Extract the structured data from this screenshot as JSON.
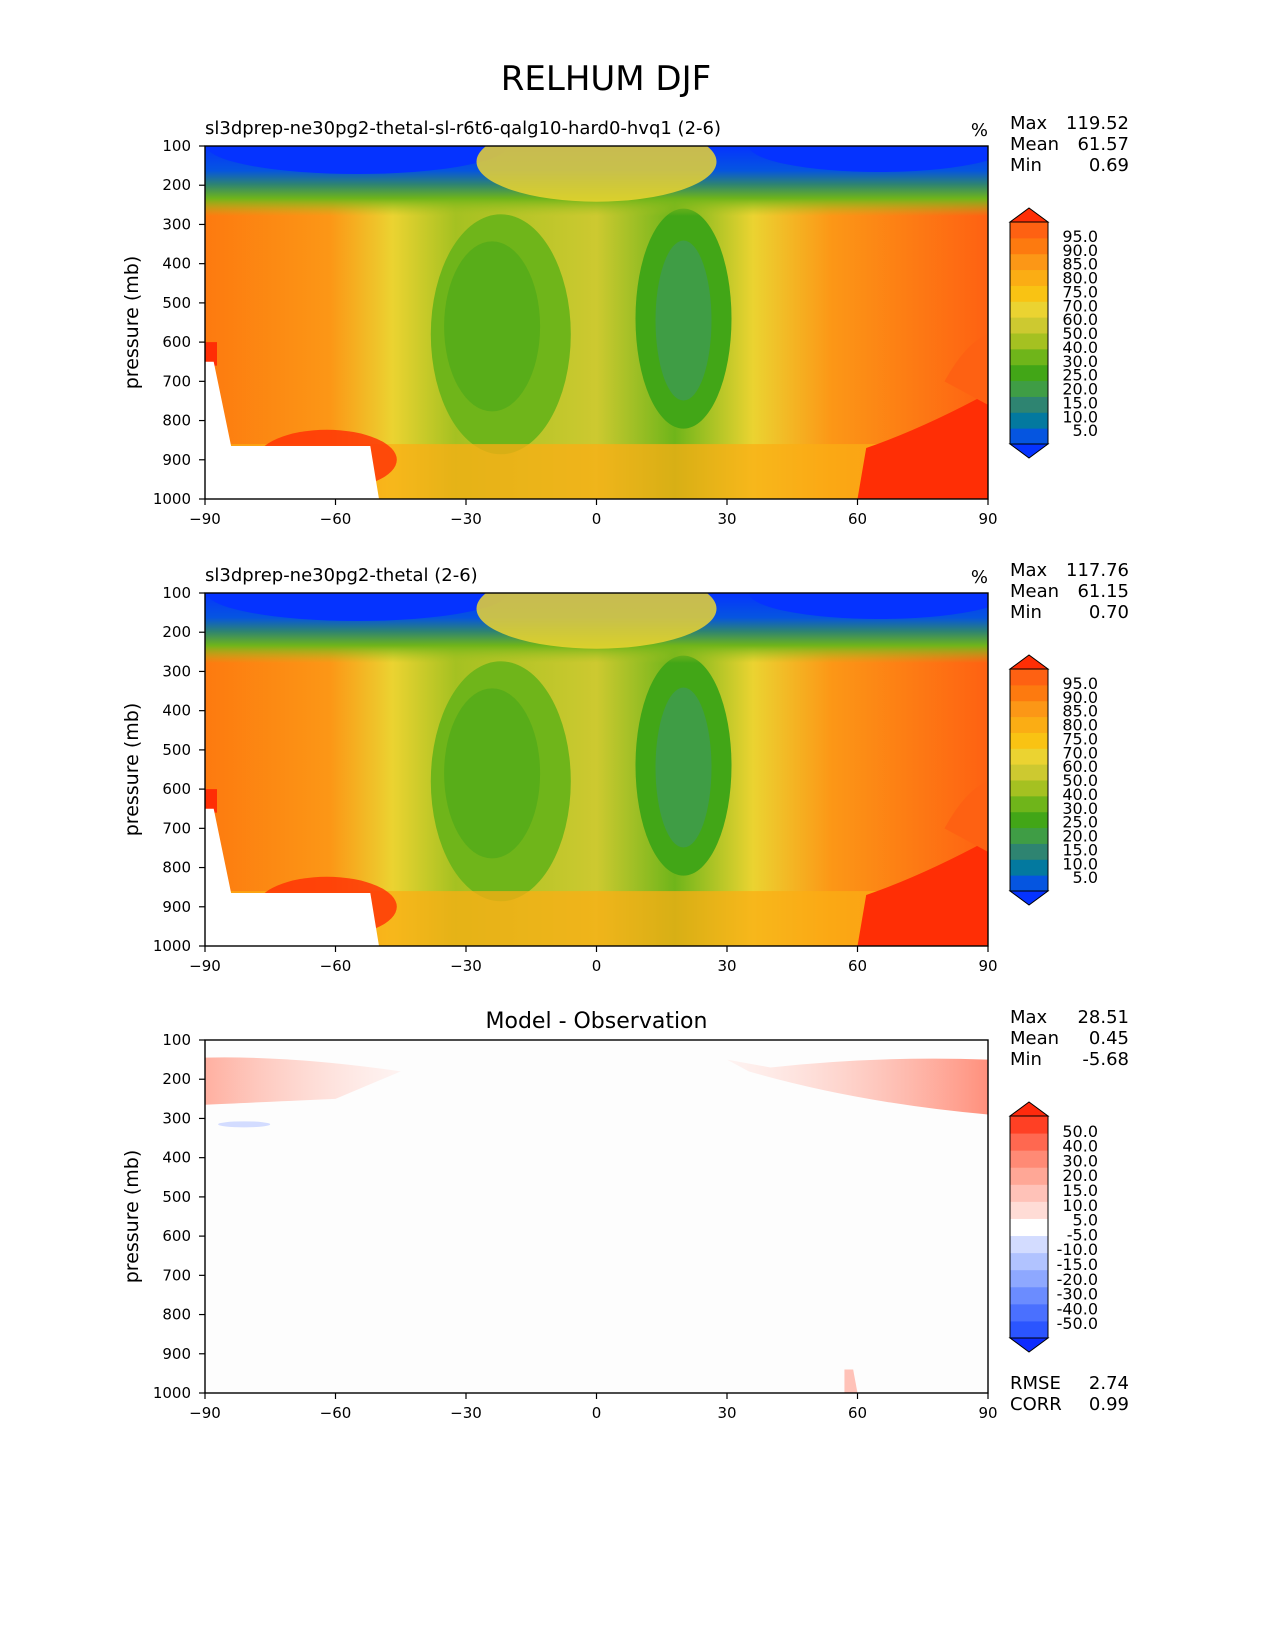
{
  "title": "RELHUM DJF",
  "stat_labels": {
    "max": "Max",
    "mean": "Mean",
    "min": "Min",
    "rmse": "RMSE",
    "corr": "CORR"
  },
  "panel_colors": {
    "absolute": [
      "#0533ff",
      "#0555e0",
      "#03799f",
      "#2e8471",
      "#3f9d45",
      "#42a617",
      "#6fb51a",
      "#a5c121",
      "#cdc930",
      "#ebd331",
      "#f9c313",
      "#fbad14",
      "#fc9716",
      "#fd7a0f",
      "#fe6112",
      "#ff2e05"
    ],
    "difference": [
      "#0d2bff",
      "#2b55ff",
      "#4a70ff",
      "#6b8cff",
      "#8ea8ff",
      "#b1c3ff",
      "#d3dcff",
      "#ffffff",
      "#ffdcd6",
      "#ffc2b8",
      "#ffa796",
      "#ff8a75",
      "#ff6850",
      "#ff4024",
      "#ff2a0d"
    ],
    "fill_background": "#fdfdfd"
  },
  "chart_data": [
    {
      "type": "contour",
      "title": "sl3dprep-ne30pg2-thetal-sl-r6t6-qalg10-hard0-hvq1 (2-6)",
      "units": "%",
      "ylabel": "pressure (mb)",
      "x_ticks": [
        -90,
        -60,
        -30,
        0,
        30,
        60,
        90
      ],
      "y_ticks": [
        100,
        200,
        300,
        400,
        500,
        600,
        700,
        800,
        900,
        1000
      ],
      "xlim": [
        -90,
        90
      ],
      "ylim": [
        1000,
        100
      ],
      "stats": {
        "max": "119.52",
        "mean": "61.57",
        "min": "0.69"
      },
      "colorbar_levels": [
        "5.0",
        "10.0",
        "15.0",
        "20.0",
        "25.0",
        "30.0",
        "40.0",
        "50.0",
        "60.0",
        "70.0",
        "75.0",
        "80.0",
        "85.0",
        "90.0",
        "95.0"
      ]
    },
    {
      "type": "contour",
      "title": "sl3dprep-ne30pg2-thetal (2-6)",
      "units": "%",
      "ylabel": "pressure (mb)",
      "x_ticks": [
        -90,
        -60,
        -30,
        0,
        30,
        60,
        90
      ],
      "y_ticks": [
        100,
        200,
        300,
        400,
        500,
        600,
        700,
        800,
        900,
        1000
      ],
      "xlim": [
        -90,
        90
      ],
      "ylim": [
        1000,
        100
      ],
      "stats": {
        "max": "117.76",
        "mean": "61.15",
        "min": "0.70"
      },
      "colorbar_levels": [
        "5.0",
        "10.0",
        "15.0",
        "20.0",
        "25.0",
        "30.0",
        "40.0",
        "50.0",
        "60.0",
        "70.0",
        "75.0",
        "80.0",
        "85.0",
        "90.0",
        "95.0"
      ]
    },
    {
      "type": "contour",
      "title": "Model - Observation",
      "units": "",
      "ylabel": "pressure (mb)",
      "x_ticks": [
        -90,
        -60,
        -30,
        0,
        30,
        60,
        90
      ],
      "y_ticks": [
        100,
        200,
        300,
        400,
        500,
        600,
        700,
        800,
        900,
        1000
      ],
      "xlim": [
        -90,
        90
      ],
      "ylim": [
        1000,
        100
      ],
      "stats": {
        "max": "28.51",
        "mean": "0.45",
        "min": "-5.68",
        "rmse": "2.74",
        "corr": "0.99"
      },
      "colorbar_levels": [
        "-50.0",
        "-40.0",
        "-30.0",
        "-20.0",
        "-15.0",
        "-10.0",
        "-5.0",
        "5.0",
        "10.0",
        "15.0",
        "20.0",
        "30.0",
        "40.0",
        "50.0"
      ]
    }
  ]
}
